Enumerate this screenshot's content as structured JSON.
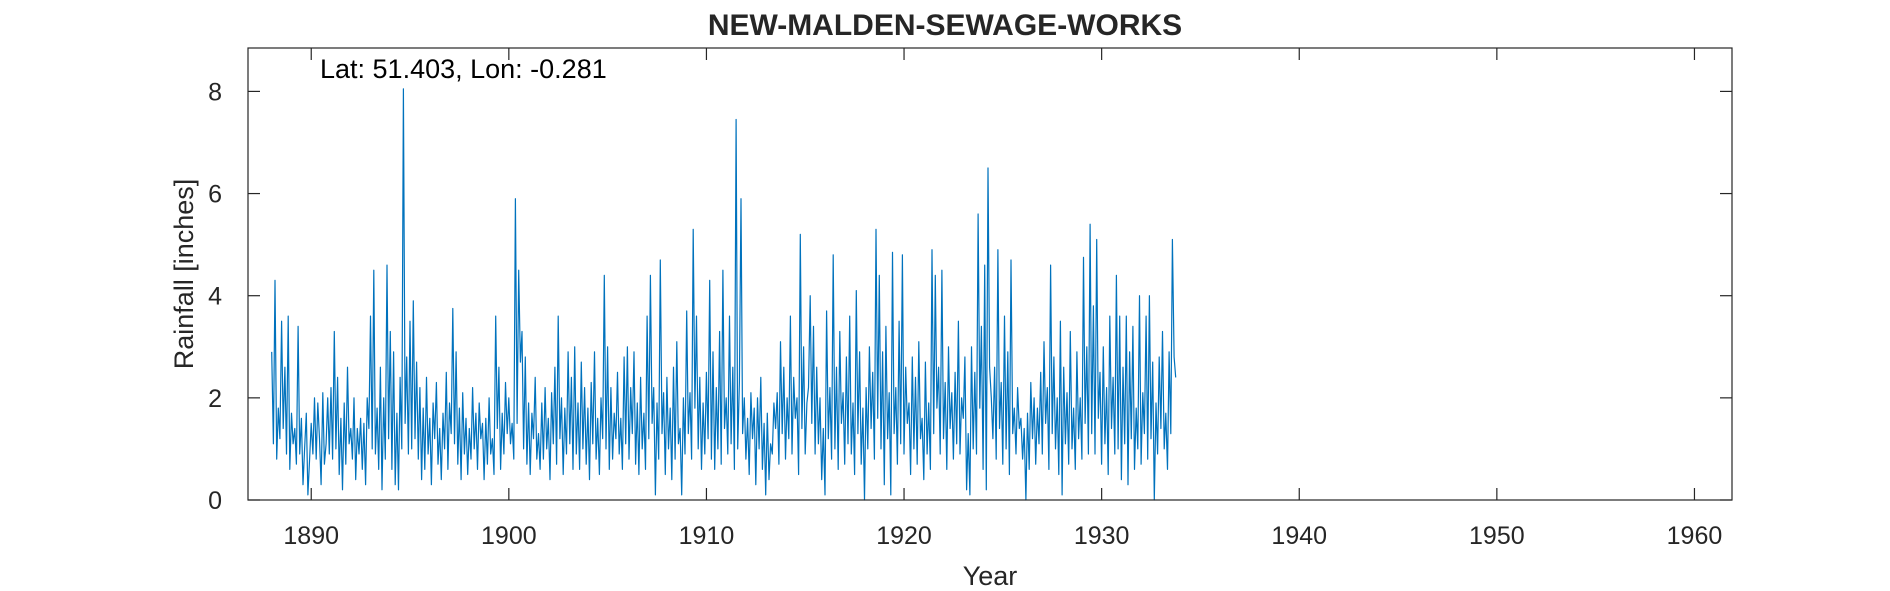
{
  "chart_data": {
    "type": "line",
    "title": "NEW-MALDEN-SEWAGE-WORKS",
    "annotation": "Lat: 51.403, Lon: -0.281",
    "xlabel": "Year",
    "ylabel": "Rainfall [inches]",
    "xlim": [
      1886.8,
      1961.9
    ],
    "ylim": [
      0,
      8.85
    ],
    "x_ticks": [
      1890,
      1900,
      1910,
      1920,
      1930,
      1940,
      1950,
      1960
    ],
    "y_ticks": [
      0,
      2,
      4,
      6,
      8
    ],
    "grid": false,
    "line_color": "#0072BD",
    "series": [
      {
        "x_start": 1888.0,
        "x_step_years": 0.08333,
        "values": [
          2.9,
          1.1,
          4.3,
          0.8,
          1.8,
          1.2,
          3.5,
          1.4,
          2.6,
          0.9,
          3.6,
          0.6,
          1.7,
          1.1,
          1.4,
          0.7,
          3.4,
          0.9,
          1.6,
          0.3,
          1.0,
          1.7,
          0.1,
          0.8,
          1.5,
          0.9,
          2.0,
          0.8,
          1.9,
          1.2,
          0.3,
          2.1,
          0.7,
          1.1,
          2.0,
          0.9,
          2.2,
          0.8,
          3.3,
          1.0,
          2.4,
          0.5,
          1.6,
          0.2,
          1.9,
          0.7,
          2.6,
          1.1,
          1.4,
          0.8,
          2.0,
          0.4,
          1.4,
          0.9,
          1.6,
          0.6,
          1.5,
          0.3,
          2.0,
          1.4,
          3.6,
          1.0,
          4.5,
          0.9,
          1.8,
          0.6,
          2.6,
          0.2,
          2.0,
          0.8,
          4.6,
          1.2,
          3.3,
          0.6,
          2.9,
          0.3,
          1.7,
          0.2,
          2.4,
          1.0,
          8.05,
          1.5,
          2.8,
          0.9,
          3.5,
          1.0,
          3.9,
          1.2,
          2.7,
          0.8,
          2.2,
          0.4,
          1.8,
          0.6,
          2.4,
          0.9,
          1.6,
          0.3,
          1.9,
          1.2,
          2.3,
          0.7,
          1.4,
          0.4,
          1.7,
          1.0,
          2.5,
          0.6,
          1.9,
          1.3,
          3.75,
          1.1,
          2.9,
          0.7,
          1.8,
          0.4,
          2.1,
          0.9,
          1.6,
          0.5,
          1.4,
          0.8,
          2.2,
          1.0,
          1.7,
          0.6,
          1.9,
          1.2,
          1.5,
          0.4,
          1.6,
          0.7,
          2.0,
          0.9,
          1.2,
          0.5,
          3.6,
          1.4,
          2.6,
          0.6,
          1.7,
          0.9,
          2.3,
          1.3,
          2.0,
          1.1,
          1.5,
          0.8,
          5.9,
          1.5,
          4.5,
          2.7,
          3.3,
          1.0,
          2.8,
          0.7,
          1.9,
          0.5,
          1.7,
          1.2,
          2.4,
          0.8,
          1.3,
          0.6,
          1.9,
          0.8,
          2.2,
          1.0,
          1.6,
          0.4,
          2.1,
          1.1,
          2.6,
          0.7,
          3.6,
          1.2,
          2.0,
          0.5,
          1.8,
          0.9,
          2.9,
          1.1,
          2.4,
          0.6,
          3.0,
          0.9,
          1.9,
          0.6,
          2.7,
          1.0,
          2.2,
          0.7,
          1.8,
          0.4,
          2.3,
          1.1,
          2.9,
          0.8,
          1.6,
          0.5,
          2.0,
          1.2,
          4.4,
          1.0,
          3.0,
          0.6,
          2.2,
          0.8,
          1.7,
          1.2,
          2.5,
          0.9,
          1.6,
          0.6,
          2.8,
          1.1,
          3.0,
          0.8,
          2.2,
          1.3,
          2.9,
          0.7,
          1.9,
          0.5,
          2.4,
          1.0,
          1.7,
          0.6,
          3.6,
          1.2,
          4.4,
          1.5,
          2.2,
          0.1,
          1.9,
          0.8,
          4.7,
          1.3,
          2.1,
          0.5,
          2.4,
          1.0,
          1.8,
          0.4,
          2.6,
          0.8,
          3.1,
          1.1,
          1.4,
          0.1,
          2.0,
          0.9,
          3.7,
          1.3,
          2.1,
          0.8,
          5.3,
          1.8,
          3.6,
          1.0,
          2.4,
          0.6,
          1.9,
          0.9,
          2.5,
          1.2,
          4.3,
          0.8,
          2.9,
          0.6,
          2.2,
          1.0,
          3.3,
          0.7,
          4.5,
          1.4,
          2.0,
          0.9,
          3.6,
          1.1,
          2.6,
          0.6,
          7.45,
          1.0,
          2.3,
          5.9,
          1.3,
          2.0,
          0.8,
          1.6,
          0.5,
          2.1,
          1.2,
          1.8,
          0.3,
          2.0,
          1.0,
          2.4,
          0.6,
          1.5,
          0.1,
          1.7,
          0.4,
          1.1,
          0.9,
          1.9,
          1.4,
          2.1,
          0.7,
          3.1,
          1.3,
          2.6,
          0.8,
          2.0,
          1.2,
          3.6,
          0.9,
          2.4,
          1.6,
          2.0,
          0.5,
          5.2,
          1.4,
          3.0,
          0.9,
          1.9,
          2.2,
          4.0,
          1.5,
          3.4,
          0.9,
          2.6,
          1.1,
          2.0,
          0.4,
          1.4,
          0.1,
          3.7,
          1.2,
          2.2,
          0.8,
          4.8,
          1.0,
          2.6,
          0.6,
          3.3,
          1.5,
          2.1,
          0.7,
          2.8,
          1.1,
          3.6,
          0.9,
          1.9,
          0.5,
          4.1,
          1.3,
          2.9,
          0.7,
          1.8,
          0.0,
          2.2,
          1.0,
          3.0,
          1.4,
          2.5,
          0.8,
          5.3,
          1.6,
          4.4,
          1.0,
          2.9,
          0.3,
          3.4,
          1.2,
          2.1,
          0.1,
          4.85,
          1.3,
          2.2,
          0.7,
          3.5,
          1.1,
          4.8,
          0.9,
          2.6,
          1.5,
          1.9,
          0.5,
          2.8,
          1.0,
          2.4,
          0.7,
          3.1,
          1.2,
          1.6,
          0.4,
          2.7,
          0.9,
          1.9,
          0.6,
          4.9,
          1.3,
          4.4,
          1.8,
          2.6,
          0.9,
          4.5,
          1.2,
          2.3,
          0.6,
          3.0,
          1.4,
          2.1,
          0.8,
          2.5,
          1.1,
          3.5,
          0.9,
          2.0,
          1.6,
          2.8,
          0.2,
          1.3,
          0.1,
          3.0,
          1.0,
          2.5,
          0.9,
          5.6,
          1.8,
          3.4,
          0.6,
          4.6,
          0.2,
          6.5,
          2.6,
          2.0,
          1.2,
          2.6,
          0.8,
          4.9,
          1.4,
          2.3,
          0.7,
          3.6,
          1.0,
          2.9,
          0.5,
          4.7,
          1.3,
          1.8,
          0.9,
          2.2,
          1.4,
          1.6,
          0.8,
          1.4,
          0.0,
          1.7,
          0.6,
          2.3,
          1.2,
          2.0,
          0.7,
          1.8,
          1.1,
          2.5,
          0.9,
          3.1,
          1.5,
          2.2,
          0.6,
          4.6,
          1.3,
          2.8,
          1.0,
          2.0,
          0.5,
          3.5,
          0.1,
          2.6,
          1.1,
          2.1,
          0.7,
          3.3,
          1.0,
          1.8,
          0.6,
          2.9,
          1.2,
          2.0,
          0.8,
          4.75,
          1.5,
          3.0,
          0.9,
          5.4,
          1.3,
          3.8,
          0.9,
          5.1,
          1.6,
          2.5,
          0.7,
          3.0,
          1.1,
          2.2,
          0.5,
          3.6,
          1.4,
          2.4,
          0.9,
          4.4,
          1.0,
          3.6,
          0.4,
          2.6,
          1.1,
          3.6,
          0.3,
          2.9,
          1.2,
          3.4,
          0.6,
          1.8,
          1.0,
          4.0,
          0.7,
          2.1,
          1.3,
          3.6,
          0.8,
          4.0,
          1.2,
          2.7,
          0.0,
          1.9,
          0.9,
          2.8,
          1.4,
          3.3,
          1.0,
          1.7,
          0.6,
          2.9,
          1.3,
          5.1,
          2.8,
          2.4
        ]
      }
    ]
  }
}
